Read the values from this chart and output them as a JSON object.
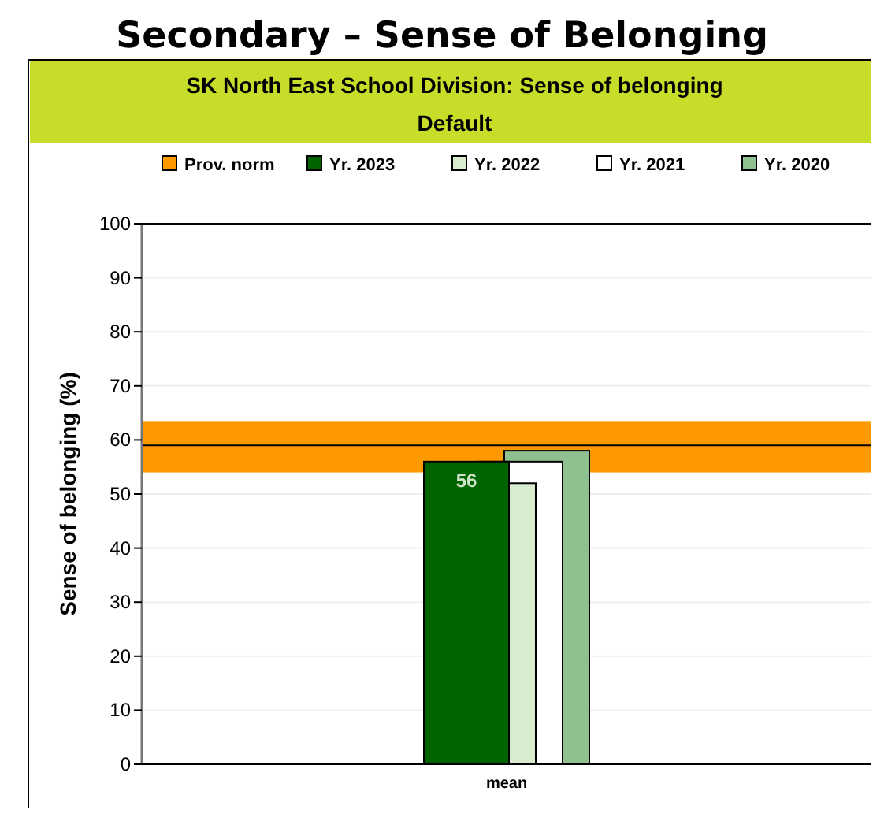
{
  "chart_data": {
    "type": "bar",
    "title": "Secondary – Sense of Belonging",
    "subtitle": "SK North East School Division: Sense of belonging",
    "annotations": [
      "Default"
    ],
    "ylabel": "Sense of belonging (%)",
    "categories": [
      "mean"
    ],
    "series": [
      {
        "name": "Yr. 2023",
        "color": "#006400",
        "values": [
          56
        ],
        "value_labels": [
          "56"
        ]
      },
      {
        "name": "Yr. 2022",
        "color": "#d8ecd0",
        "values": [
          52
        ]
      },
      {
        "name": "Yr. 2021",
        "color": "#ffffff",
        "values": [
          56
        ]
      },
      {
        "name": "Yr. 2020",
        "color": "#8fc08f",
        "values": [
          58
        ]
      }
    ],
    "bands": [
      {
        "axis": "y",
        "from": 54,
        "to": 63.5,
        "label": "Prov. norm",
        "color": "#ff9900"
      }
    ],
    "ref_lines": [
      {
        "axis": "y",
        "value": 59,
        "color": "#000000"
      }
    ],
    "ylim": [
      0,
      100
    ],
    "yticks": [
      0,
      10,
      20,
      30,
      40,
      50,
      60,
      70,
      80,
      90,
      100
    ],
    "grid": "y",
    "legend": "top"
  }
}
